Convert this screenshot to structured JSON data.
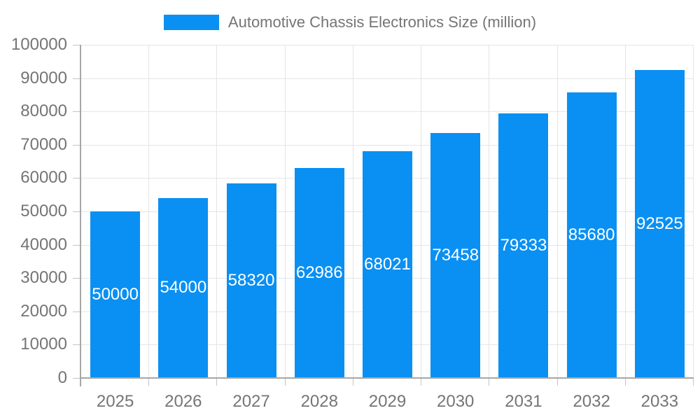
{
  "chart_data": {
    "type": "bar",
    "title": "Automotive Chassis Electronics Size (million)",
    "categories": [
      "2025",
      "2026",
      "2027",
      "2028",
      "2029",
      "2030",
      "2031",
      "2032",
      "2033"
    ],
    "values": [
      50000,
      54000,
      58320,
      62986,
      68021,
      73458,
      79333,
      85680,
      92525
    ],
    "xlabel": "",
    "ylabel": "",
    "ylim": [
      0,
      100000
    ],
    "ytick_step": 10000,
    "ytick_labels": [
      "0",
      "10000",
      "20000",
      "30000",
      "40000",
      "50000",
      "60000",
      "70000",
      "80000",
      "90000",
      "100000"
    ],
    "grid": true,
    "legend_position": "top",
    "bar_value_labels_inside": true,
    "colors": {
      "bar": "#0a90f2",
      "grid": "#e5e5e5",
      "axis": "#a6a6a6",
      "tick": "#c4c4c4",
      "text": "#757575",
      "bar_label": "#ffffff",
      "background": "#ffffff"
    }
  }
}
